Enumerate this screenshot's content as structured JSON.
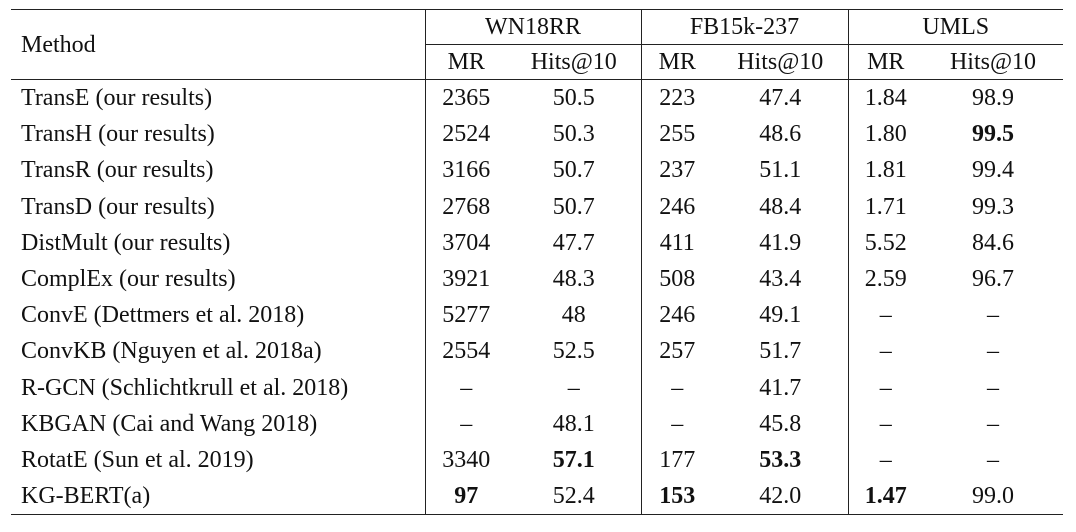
{
  "table": {
    "method_header": "Method",
    "groups": [
      "WN18RR",
      "FB15k-237",
      "UMLS"
    ],
    "subheaders": [
      "MR",
      "Hits@10",
      "MR",
      "Hits@10",
      "MR",
      "Hits@10"
    ],
    "rows": [
      {
        "method": "TransE (our results)",
        "cells": [
          "2365",
          "50.5",
          "223",
          "47.4",
          "1.84",
          "98.9"
        ],
        "bold": []
      },
      {
        "method": "TransH (our results)",
        "cells": [
          "2524",
          "50.3",
          "255",
          "48.6",
          "1.80",
          "99.5"
        ],
        "bold": [
          5
        ]
      },
      {
        "method": "TransR (our results)",
        "cells": [
          "3166",
          "50.7",
          "237",
          "51.1",
          "1.81",
          "99.4"
        ],
        "bold": []
      },
      {
        "method": "TransD (our results)",
        "cells": [
          "2768",
          "50.7",
          "246",
          "48.4",
          "1.71",
          "99.3"
        ],
        "bold": []
      },
      {
        "method": "DistMult (our results)",
        "cells": [
          "3704",
          "47.7",
          "411",
          "41.9",
          "5.52",
          "84.6"
        ],
        "bold": []
      },
      {
        "method": "ComplEx (our results)",
        "cells": [
          "3921",
          "48.3",
          "508",
          "43.4",
          "2.59",
          "96.7"
        ],
        "bold": []
      },
      {
        "method": "ConvE (Dettmers et al. 2018)",
        "cells": [
          "5277",
          "48",
          "246",
          "49.1",
          "–",
          "–"
        ],
        "bold": []
      },
      {
        "method": "ConvKB (Nguyen et al. 2018a)",
        "cells": [
          "2554",
          "52.5",
          "257",
          "51.7",
          "–",
          "–"
        ],
        "bold": []
      },
      {
        "method": "R-GCN (Schlichtkrull et al. 2018)",
        "cells": [
          "–",
          "–",
          "–",
          "41.7",
          "–",
          "–"
        ],
        "bold": []
      },
      {
        "method": "KBGAN (Cai and Wang 2018)",
        "cells": [
          "–",
          "48.1",
          "–",
          "45.8",
          "–",
          "–"
        ],
        "bold": []
      },
      {
        "method": "RotatE (Sun et al. 2019)",
        "cells": [
          "3340",
          "57.1",
          "177",
          "53.3",
          "–",
          "–"
        ],
        "bold": [
          1,
          3
        ]
      },
      {
        "method": "KG-BERT(a)",
        "cells": [
          "97",
          "52.4",
          "153",
          "42.0",
          "1.47",
          "99.0"
        ],
        "bold": [
          0,
          2,
          4
        ]
      }
    ]
  }
}
